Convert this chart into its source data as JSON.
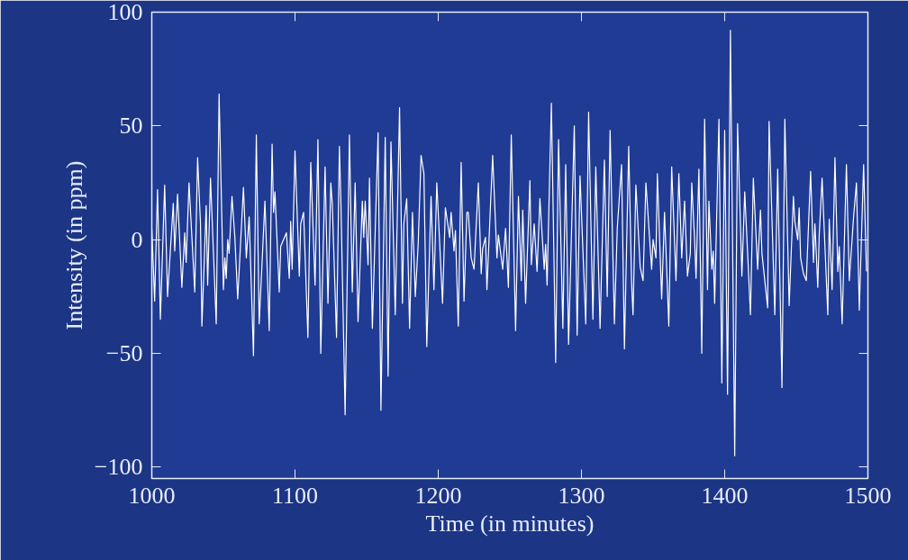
{
  "chart_data": {
    "type": "line",
    "xlabel": "Time (in minutes)",
    "ylabel": "Intensity (in ppm)",
    "xlim": [
      1000,
      1500
    ],
    "ylim": [
      -105,
      100
    ],
    "xticks": [
      1000,
      1100,
      1200,
      1300,
      1400,
      1500
    ],
    "yticks": [
      {
        "value": -100,
        "label": "−100"
      },
      {
        "value": -50,
        "label": "−50"
      },
      0,
      50,
      100
    ],
    "grid": false,
    "marker": "none",
    "line_style": "solid",
    "series": [
      {
        "color": "#ffffff",
        "x": [
          1000,
          1002,
          1004,
          1006,
          1009,
          1011,
          1015,
          1016,
          1018,
          1021,
          1023,
          1024,
          1026,
          1030,
          1032,
          1034,
          1035,
          1038,
          1039,
          1041,
          1045,
          1047,
          1050,
          1051,
          1052,
          1053,
          1054,
          1056,
          1058,
          1060,
          1064,
          1066,
          1068,
          1071,
          1073,
          1075,
          1079,
          1082,
          1084,
          1085,
          1086,
          1089,
          1090,
          1094,
          1096,
          1097,
          1098,
          1100,
          1103,
          1104,
          1106,
          1109,
          1111,
          1114,
          1116,
          1118,
          1121,
          1123,
          1125,
          1126,
          1129,
          1131,
          1132,
          1135,
          1138,
          1140,
          1142,
          1144,
          1147,
          1148,
          1149,
          1151,
          1152,
          1154,
          1158,
          1160,
          1163,
          1165,
          1167,
          1170,
          1173,
          1175,
          1176,
          1178,
          1180,
          1182,
          1184,
          1186,
          1188,
          1190,
          1192,
          1195,
          1197,
          1199,
          1203,
          1205,
          1208,
          1209,
          1211,
          1212,
          1214,
          1216,
          1218,
          1220,
          1221,
          1223,
          1225,
          1228,
          1230,
          1231,
          1233,
          1234,
          1236,
          1238,
          1241,
          1242,
          1245,
          1247,
          1249,
          1251,
          1254,
          1256,
          1258,
          1259,
          1261,
          1264,
          1265,
          1267,
          1269,
          1271,
          1274,
          1275,
          1276,
          1279,
          1282,
          1284,
          1287,
          1289,
          1291,
          1295,
          1297,
          1299,
          1303,
          1305,
          1308,
          1310,
          1313,
          1316,
          1318,
          1320,
          1323,
          1325,
          1328,
          1330,
          1333,
          1335,
          1336,
          1338,
          1341,
          1343,
          1345,
          1349,
          1350,
          1352,
          1353,
          1356,
          1358,
          1361,
          1363,
          1366,
          1368,
          1370,
          1372,
          1374,
          1376,
          1377,
          1379,
          1380,
          1382,
          1384,
          1386,
          1388,
          1389,
          1391,
          1392,
          1393,
          1396,
          1398,
          1400,
          1402,
          1404,
          1407,
          1409,
          1412,
          1414,
          1418,
          1420,
          1423,
          1425,
          1426,
          1428,
          1430,
          1431,
          1435,
          1437,
          1440,
          1442,
          1445,
          1448,
          1449,
          1451,
          1452,
          1453,
          1455,
          1457,
          1460,
          1462,
          1463,
          1465,
          1466,
          1468,
          1472,
          1473,
          1475,
          1477,
          1479,
          1480,
          1482,
          1485,
          1487,
          1490,
          1492,
          1494,
          1497,
          1499
        ],
        "values": [
          5,
          -27,
          22,
          -35,
          24,
          -25,
          16,
          -5,
          20,
          -21,
          3,
          -10,
          25,
          -23,
          36,
          7,
          -38,
          15,
          -20,
          27,
          -37,
          64,
          -22,
          -8,
          -17,
          0,
          -6,
          19,
          1,
          -26,
          23,
          -8,
          10,
          -51,
          46,
          -37,
          17,
          -40,
          42,
          12,
          21,
          -23,
          -3,
          3,
          -17,
          8,
          -13,
          39,
          -16,
          7,
          12,
          -43,
          34,
          -20,
          44,
          -50,
          32,
          -28,
          25,
          16,
          -43,
          41,
          18,
          -77,
          46,
          -23,
          25,
          -36,
          17,
          1,
          17,
          -11,
          27,
          -39,
          47,
          -75,
          45,
          -60,
          43,
          -33,
          58,
          -28,
          7,
          18,
          -39,
          12,
          -25,
          -2,
          37,
          29,
          -47,
          19,
          -22,
          25,
          -28,
          14,
          1,
          12,
          -5,
          4,
          -38,
          34,
          -27,
          12,
          12,
          -8,
          -13,
          25,
          -15,
          -4,
          1,
          -22,
          8,
          37,
          -8,
          2,
          -13,
          5,
          -21,
          46,
          -40,
          19,
          -18,
          13,
          -28,
          26,
          -11,
          7,
          -14,
          18,
          -13,
          -2,
          -20,
          60,
          -54,
          44,
          -39,
          33,
          -46,
          50,
          -42,
          28,
          -37,
          56,
          -35,
          32,
          -39,
          35,
          -25,
          48,
          -37,
          5,
          33,
          -48,
          41,
          -19,
          -33,
          24,
          -12,
          -18,
          25,
          -13,
          0,
          -8,
          29,
          -26,
          12,
          -38,
          32,
          -18,
          29,
          -8,
          17,
          -16,
          -6,
          25,
          0,
          -17,
          31,
          -50,
          53,
          -22,
          17,
          -13,
          -5,
          -28,
          53,
          -63,
          48,
          -68,
          92,
          -95,
          51,
          -16,
          21,
          -33,
          27,
          -13,
          13,
          -6,
          -18,
          -30,
          52,
          -33,
          31,
          -65,
          53,
          -29,
          19,
          8,
          0,
          14,
          -8,
          -15,
          -18,
          30,
          -10,
          7,
          -21,
          2,
          27,
          -33,
          9,
          -22,
          36,
          -14,
          -3,
          -37,
          33,
          -18,
          10,
          25,
          -31,
          33,
          -14
        ]
      }
    ]
  }
}
